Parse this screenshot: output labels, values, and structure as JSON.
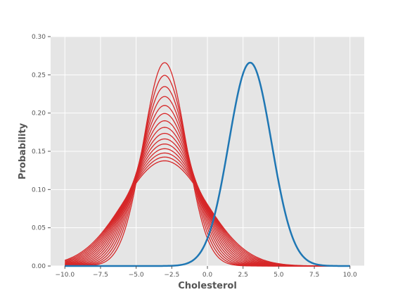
{
  "chart_data": {
    "type": "line",
    "title": "",
    "xlabel": "Cholesterol",
    "ylabel": "Probability",
    "xlim": [
      -11.0,
      11.0
    ],
    "ylim": [
      0.0,
      0.3
    ],
    "x_ticks": [
      -10.0,
      -7.5,
      -5.0,
      -2.5,
      0.0,
      2.5,
      5.0,
      7.5,
      10.0
    ],
    "x_tick_labels": [
      "−10.0",
      "−7.5",
      "−5.0",
      "−2.5",
      "0.0",
      "2.5",
      "5.0",
      "7.5",
      "10.0"
    ],
    "y_ticks": [
      0.0,
      0.05,
      0.1,
      0.15,
      0.2,
      0.25,
      0.3
    ],
    "y_tick_labels": [
      "0.00",
      "0.05",
      "0.10",
      "0.15",
      "0.20",
      "0.25",
      "0.30"
    ],
    "grid": true,
    "x_range": [
      -10.0,
      10.0
    ],
    "colors": {
      "red_family": "#d62728",
      "target": "#1f77b4",
      "background": "#e5e5e5",
      "grid": "#ffffff"
    },
    "series": [
      {
        "mean": -3.0,
        "sd": 1.5,
        "color": "#d62728"
      },
      {
        "mean": -3.0,
        "sd": 1.6,
        "color": "#d62728"
      },
      {
        "mean": -3.0,
        "sd": 1.7,
        "color": "#d62728"
      },
      {
        "mean": -3.0,
        "sd": 1.8,
        "color": "#d62728"
      },
      {
        "mean": -3.0,
        "sd": 1.9,
        "color": "#d62728"
      },
      {
        "mean": -3.0,
        "sd": 2.0,
        "color": "#d62728"
      },
      {
        "mean": -3.0,
        "sd": 2.1,
        "color": "#d62728"
      },
      {
        "mean": -3.0,
        "sd": 2.2,
        "color": "#d62728"
      },
      {
        "mean": -3.0,
        "sd": 2.3,
        "color": "#d62728"
      },
      {
        "mean": -3.0,
        "sd": 2.4,
        "color": "#d62728"
      },
      {
        "mean": -3.0,
        "sd": 2.5,
        "color": "#d62728"
      },
      {
        "mean": -3.0,
        "sd": 2.6,
        "color": "#d62728"
      },
      {
        "mean": -3.0,
        "sd": 2.7,
        "color": "#d62728"
      },
      {
        "mean": -3.0,
        "sd": 2.8,
        "color": "#d62728"
      },
      {
        "mean": -3.0,
        "sd": 2.9,
        "color": "#d62728"
      },
      {
        "mean": 3.0,
        "sd": 1.5,
        "color": "#1f77b4"
      }
    ]
  }
}
